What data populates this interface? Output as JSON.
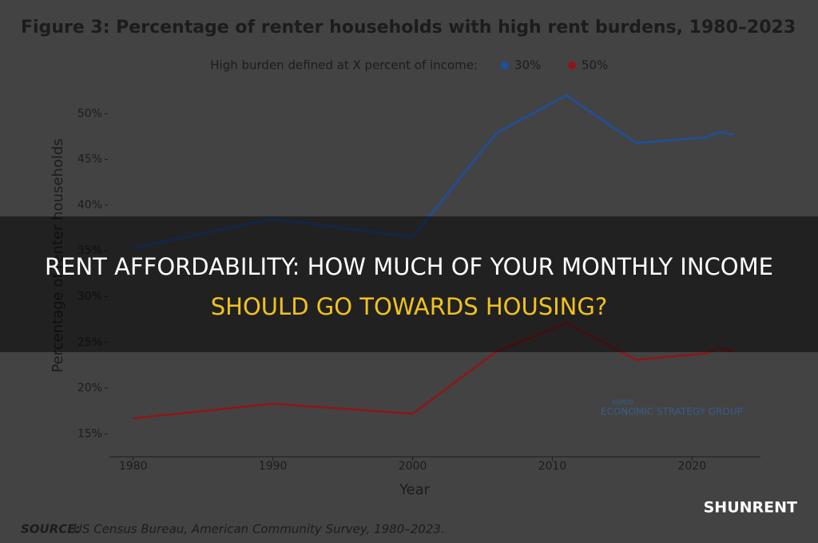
{
  "chart_data": {
    "type": "line",
    "title": "Figure 3: Percentage of renter households with high rent burdens, 1980–2023",
    "legend_title": "High burden defined at X percent of income:",
    "x_label": "Year",
    "y_label": "Percentage of renter households",
    "x": [
      1980,
      1990,
      2000,
      2006,
      2011,
      2016,
      2021,
      2022,
      2023
    ],
    "series": [
      {
        "name": "30%",
        "color": "#1f4f9e",
        "values": [
          35.3,
          38.5,
          36.5,
          47.9,
          52.0,
          46.8,
          47.4,
          48.0,
          47.7
        ]
      },
      {
        "name": "50%",
        "color": "#8e1618",
        "values": [
          16.7,
          18.3,
          17.2,
          24.0,
          27.1,
          23.1,
          23.8,
          24.4,
          24.0
        ]
      }
    ],
    "xlim": [
      1978.3,
      2024.9
    ],
    "xticks": [
      1980,
      1990,
      2000,
      2010,
      2020
    ],
    "ylim": [
      12.5,
      53
    ],
    "yticks": [
      {
        "value": 15,
        "label": "15%"
      },
      {
        "value": 20,
        "label": "20%"
      },
      {
        "value": 25,
        "label": "25%"
      },
      {
        "value": 30,
        "label": "30%"
      },
      {
        "value": 35,
        "label": "35%"
      },
      {
        "value": 40,
        "label": "40%"
      },
      {
        "value": 45,
        "label": "45%"
      },
      {
        "value": 50,
        "label": "50%"
      }
    ],
    "source_label": "SOURCE:",
    "source": "US Census Bureau, American Community Survey, 1980–2023."
  },
  "logo": {
    "top": "ASPEN",
    "name": "ECONOMIC STRATEGY GROUP"
  },
  "banner": {
    "line1": "RENT AFFORDABILITY: HOW MUCH OF YOUR MONTHLY INCOME",
    "line2": "SHOULD GO TOWARDS HOUSING?"
  },
  "watermark": "SHUNRENT"
}
